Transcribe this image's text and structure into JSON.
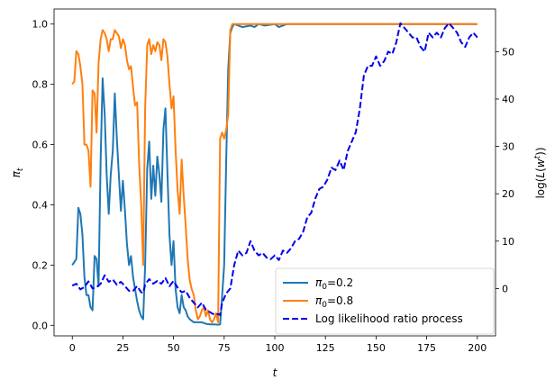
{
  "chart_data": {
    "type": "line",
    "xlabel": "t",
    "ylabel_left": "π_t",
    "ylabel_right": "log(L(w^t))",
    "xlim": [
      -9,
      209
    ],
    "ylim_left": [
      -0.035,
      1.05
    ],
    "ylim_right": [
      -10,
      59
    ],
    "x_ticks": [
      0,
      25,
      50,
      75,
      100,
      125,
      150,
      175,
      200
    ],
    "x_tick_labels": [
      "0",
      "25",
      "50",
      "75",
      "100",
      "125",
      "150",
      "175",
      "200"
    ],
    "y_left_ticks": [
      0.0,
      0.2,
      0.4,
      0.6,
      0.8,
      1.0
    ],
    "y_left_tick_labels": [
      "0.0",
      "0.2",
      "0.4",
      "0.6",
      "0.8",
      "1.0"
    ],
    "y_right_ticks": [
      0,
      10,
      20,
      30,
      40,
      50
    ],
    "y_right_tick_labels": [
      "0",
      "10",
      "20",
      "30",
      "40",
      "50"
    ],
    "legend_position": "lower-right",
    "series": [
      {
        "name": "π₀=0.2",
        "axis": "left",
        "color": "#1f77b4",
        "style": "solid",
        "points": [
          [
            0,
            0.2
          ],
          [
            2,
            0.22
          ],
          [
            3,
            0.39
          ],
          [
            4,
            0.37
          ],
          [
            5,
            0.3
          ],
          [
            6,
            0.16
          ],
          [
            7,
            0.1
          ],
          [
            8,
            0.1
          ],
          [
            9,
            0.06
          ],
          [
            10,
            0.05
          ],
          [
            11,
            0.23
          ],
          [
            12,
            0.22
          ],
          [
            13,
            0.13
          ],
          [
            14,
            0.55
          ],
          [
            15,
            0.82
          ],
          [
            16,
            0.7
          ],
          [
            17,
            0.5
          ],
          [
            18,
            0.37
          ],
          [
            19,
            0.5
          ],
          [
            20,
            0.58
          ],
          [
            21,
            0.77
          ],
          [
            22,
            0.62
          ],
          [
            23,
            0.5
          ],
          [
            24,
            0.38
          ],
          [
            25,
            0.48
          ],
          [
            26,
            0.38
          ],
          [
            27,
            0.27
          ],
          [
            28,
            0.2
          ],
          [
            29,
            0.23
          ],
          [
            30,
            0.16
          ],
          [
            31,
            0.12
          ],
          [
            32,
            0.08
          ],
          [
            33,
            0.05
          ],
          [
            34,
            0.03
          ],
          [
            35,
            0.02
          ],
          [
            36,
            0.2
          ],
          [
            37,
            0.52
          ],
          [
            38,
            0.61
          ],
          [
            39,
            0.42
          ],
          [
            40,
            0.53
          ],
          [
            41,
            0.43
          ],
          [
            42,
            0.56
          ],
          [
            43,
            0.5
          ],
          [
            44,
            0.41
          ],
          [
            45,
            0.65
          ],
          [
            46,
            0.72
          ],
          [
            47,
            0.5
          ],
          [
            48,
            0.3
          ],
          [
            49,
            0.2
          ],
          [
            50,
            0.28
          ],
          [
            51,
            0.12
          ],
          [
            52,
            0.06
          ],
          [
            53,
            0.04
          ],
          [
            54,
            0.1
          ],
          [
            55,
            0.06
          ],
          [
            56,
            0.05
          ],
          [
            57,
            0.03
          ],
          [
            58,
            0.02
          ],
          [
            60,
            0.01
          ],
          [
            62,
            0.01
          ],
          [
            64,
            0.01
          ],
          [
            66,
            0.005
          ],
          [
            68,
            0.003
          ],
          [
            70,
            0.003
          ],
          [
            72,
            0.002
          ],
          [
            73,
            0.003
          ],
          [
            74,
            0.1
          ],
          [
            75,
            0.2
          ],
          [
            76,
            0.55
          ],
          [
            77,
            0.85
          ],
          [
            78,
            0.97
          ],
          [
            79,
            0.99
          ],
          [
            80,
            1.0
          ],
          [
            84,
            0.99
          ],
          [
            88,
            0.995
          ],
          [
            90,
            0.99
          ],
          [
            92,
            1.0
          ],
          [
            95,
            0.995
          ],
          [
            100,
            1.0
          ],
          [
            102,
            0.99
          ],
          [
            106,
            1.0
          ],
          [
            120,
            1.0
          ],
          [
            140,
            1.0
          ],
          [
            160,
            1.0
          ],
          [
            180,
            1.0
          ],
          [
            200,
            1.0
          ]
        ]
      },
      {
        "name": "π₀=0.8",
        "axis": "left",
        "color": "#ff7f0e",
        "style": "solid",
        "points": [
          [
            0,
            0.8
          ],
          [
            1,
            0.81
          ],
          [
            2,
            0.91
          ],
          [
            3,
            0.9
          ],
          [
            4,
            0.86
          ],
          [
            5,
            0.8
          ],
          [
            6,
            0.6
          ],
          [
            7,
            0.6
          ],
          [
            8,
            0.58
          ],
          [
            9,
            0.46
          ],
          [
            10,
            0.78
          ],
          [
            11,
            0.77
          ],
          [
            12,
            0.64
          ],
          [
            13,
            0.87
          ],
          [
            14,
            0.95
          ],
          [
            15,
            0.98
          ],
          [
            16,
            0.97
          ],
          [
            17,
            0.95
          ],
          [
            18,
            0.91
          ],
          [
            19,
            0.95
          ],
          [
            20,
            0.95
          ],
          [
            21,
            0.98
          ],
          [
            22,
            0.97
          ],
          [
            23,
            0.96
          ],
          [
            24,
            0.92
          ],
          [
            25,
            0.95
          ],
          [
            26,
            0.93
          ],
          [
            27,
            0.88
          ],
          [
            28,
            0.85
          ],
          [
            29,
            0.86
          ],
          [
            30,
            0.79
          ],
          [
            31,
            0.73
          ],
          [
            32,
            0.74
          ],
          [
            33,
            0.54
          ],
          [
            34,
            0.4
          ],
          [
            35,
            0.2
          ],
          [
            36,
            0.72
          ],
          [
            37,
            0.93
          ],
          [
            38,
            0.95
          ],
          [
            39,
            0.9
          ],
          [
            40,
            0.93
          ],
          [
            41,
            0.91
          ],
          [
            42,
            0.94
          ],
          [
            43,
            0.93
          ],
          [
            44,
            0.88
          ],
          [
            45,
            0.95
          ],
          [
            46,
            0.94
          ],
          [
            47,
            0.89
          ],
          [
            48,
            0.8
          ],
          [
            49,
            0.72
          ],
          [
            50,
            0.76
          ],
          [
            51,
            0.58
          ],
          [
            52,
            0.45
          ],
          [
            53,
            0.37
          ],
          [
            54,
            0.55
          ],
          [
            55,
            0.43
          ],
          [
            56,
            0.33
          ],
          [
            57,
            0.22
          ],
          [
            58,
            0.15
          ],
          [
            59,
            0.12
          ],
          [
            60,
            0.1
          ],
          [
            61,
            0.05
          ],
          [
            62,
            0.02
          ],
          [
            63,
            0.03
          ],
          [
            64,
            0.05
          ],
          [
            65,
            0.06
          ],
          [
            66,
            0.03
          ],
          [
            67,
            0.05
          ],
          [
            68,
            0.02
          ],
          [
            69,
            0.01
          ],
          [
            70,
            0.02
          ],
          [
            71,
            0.04
          ],
          [
            72,
            0.01
          ],
          [
            73,
            0.62
          ],
          [
            74,
            0.64
          ],
          [
            75,
            0.62
          ],
          [
            76,
            0.65
          ],
          [
            77,
            0.7
          ],
          [
            78,
            0.98
          ],
          [
            79,
            1.0
          ],
          [
            80,
            1.0
          ],
          [
            90,
            1.0
          ],
          [
            100,
            1.0
          ],
          [
            120,
            1.0
          ],
          [
            140,
            1.0
          ],
          [
            160,
            1.0
          ],
          [
            180,
            1.0
          ],
          [
            200,
            1.0
          ]
        ]
      },
      {
        "name": "Log likelihood ratio process",
        "axis": "right",
        "color": "#0000ee",
        "style": "dashed",
        "points": [
          [
            0,
            0.6
          ],
          [
            2,
            1
          ],
          [
            4,
            -0.2
          ],
          [
            6,
            0.3
          ],
          [
            8,
            1.5
          ],
          [
            10,
            0
          ],
          [
            12,
            0.3
          ],
          [
            14,
            1
          ],
          [
            16,
            2.8
          ],
          [
            18,
            1.4
          ],
          [
            20,
            1.9
          ],
          [
            22,
            0.8
          ],
          [
            24,
            1.4
          ],
          [
            26,
            0.5
          ],
          [
            28,
            -0.5
          ],
          [
            30,
            -0.5
          ],
          [
            32,
            0.5
          ],
          [
            34,
            -0.8
          ],
          [
            35,
            -0.9
          ],
          [
            36,
            0.8
          ],
          [
            38,
            2
          ],
          [
            40,
            1
          ],
          [
            42,
            1.6
          ],
          [
            44,
            1
          ],
          [
            46,
            2.2
          ],
          [
            48,
            0.5
          ],
          [
            50,
            1.6
          ],
          [
            52,
            0.2
          ],
          [
            54,
            -0.8
          ],
          [
            56,
            -0.5
          ],
          [
            58,
            -2
          ],
          [
            60,
            -3
          ],
          [
            62,
            -4
          ],
          [
            64,
            -3
          ],
          [
            66,
            -4.5
          ],
          [
            68,
            -5
          ],
          [
            70,
            -5.5
          ],
          [
            72,
            -5.4
          ],
          [
            73,
            -5.6
          ],
          [
            74,
            -3
          ],
          [
            76,
            -1
          ],
          [
            78,
            0
          ],
          [
            80,
            5
          ],
          [
            82,
            8
          ],
          [
            84,
            7
          ],
          [
            86,
            7.5
          ],
          [
            88,
            10
          ],
          [
            90,
            8
          ],
          [
            92,
            7
          ],
          [
            94,
            7.5
          ],
          [
            96,
            6.5
          ],
          [
            98,
            6.2
          ],
          [
            100,
            7
          ],
          [
            102,
            6
          ],
          [
            104,
            8
          ],
          [
            106,
            7.5
          ],
          [
            108,
            8.5
          ],
          [
            110,
            10
          ],
          [
            112,
            10.5
          ],
          [
            114,
            12
          ],
          [
            116,
            15
          ],
          [
            118,
            16
          ],
          [
            120,
            19
          ],
          [
            122,
            21
          ],
          [
            124,
            21.5
          ],
          [
            126,
            23
          ],
          [
            128,
            25.5
          ],
          [
            130,
            25
          ],
          [
            132,
            27
          ],
          [
            134,
            25
          ],
          [
            136,
            29
          ],
          [
            138,
            31
          ],
          [
            140,
            33
          ],
          [
            142,
            38
          ],
          [
            144,
            45
          ],
          [
            146,
            47
          ],
          [
            148,
            47
          ],
          [
            150,
            49
          ],
          [
            152,
            47
          ],
          [
            154,
            48
          ],
          [
            156,
            50
          ],
          [
            158,
            49.5
          ],
          [
            160,
            52
          ],
          [
            162,
            56
          ],
          [
            164,
            55
          ],
          [
            166,
            54
          ],
          [
            168,
            53
          ],
          [
            170,
            53
          ],
          [
            172,
            51
          ],
          [
            174,
            50
          ],
          [
            176,
            54
          ],
          [
            178,
            53
          ],
          [
            180,
            54
          ],
          [
            182,
            53
          ],
          [
            184,
            55
          ],
          [
            186,
            56
          ],
          [
            188,
            55
          ],
          [
            190,
            54
          ],
          [
            192,
            52
          ],
          [
            194,
            51
          ],
          [
            196,
            53
          ],
          [
            198,
            54
          ],
          [
            200,
            53
          ]
        ]
      }
    ],
    "legend": [
      {
        "label_pre": "π",
        "label_sub": "0",
        "label_post": "=0.2",
        "color": "#1f77b4",
        "style": "solid"
      },
      {
        "label_pre": "π",
        "label_sub": "0",
        "label_post": "=0.8",
        "color": "#ff7f0e",
        "style": "solid"
      },
      {
        "label_pre": "Log likelihood ratio process",
        "label_sub": "",
        "label_post": "",
        "color": "#0000ee",
        "style": "dashed"
      }
    ]
  }
}
